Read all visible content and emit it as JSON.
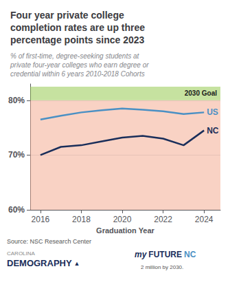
{
  "chart_data": {
    "type": "line",
    "title": "Four year private college\ncompletion rates are up three\npercentage points since 2023",
    "subtitle": "% of first-time, degree-seeking students at\nprivate four-year colleges who earn degree or\ncredential within 6 years 2010-2018 Cohorts",
    "xlabel": "Graduation Year",
    "source": "Source: NSC Research Center",
    "x": [
      2016,
      2017,
      2018,
      2019,
      2020,
      2021,
      2022,
      2023,
      2024
    ],
    "series": [
      {
        "name": "US",
        "color": "#4a90c4",
        "values": [
          76.5,
          77.2,
          77.8,
          78.2,
          78.5,
          78.3,
          78.0,
          77.5,
          77.8
        ]
      },
      {
        "name": "NC",
        "color": "#1a2e5a",
        "values": [
          70.0,
          71.5,
          71.8,
          72.5,
          73.2,
          73.5,
          73.0,
          71.8,
          74.5
        ]
      }
    ],
    "bands": [
      {
        "from": 60,
        "to": 80.0,
        "color": "#f4a58a"
      },
      {
        "from": 80.0,
        "to": 82.5,
        "color": "#8dc641",
        "label": "2030 Goal"
      }
    ],
    "xlim": [
      2015.5,
      2024.8
    ],
    "xticks": [
      2016,
      2018,
      2020,
      2022,
      2024
    ],
    "ylim": [
      60,
      83
    ],
    "yticks": [
      {
        "value": 60,
        "label": "60%"
      },
      {
        "value": 70,
        "label": "70%"
      },
      {
        "value": 80,
        "label": "80%"
      }
    ],
    "grid": true,
    "logos": [
      [
        "CAROLINA",
        "DEMOGRAPHY",
        "▲"
      ],
      [
        "my",
        "FUTURE",
        "NC",
        "2 million by 2030."
      ]
    ]
  }
}
